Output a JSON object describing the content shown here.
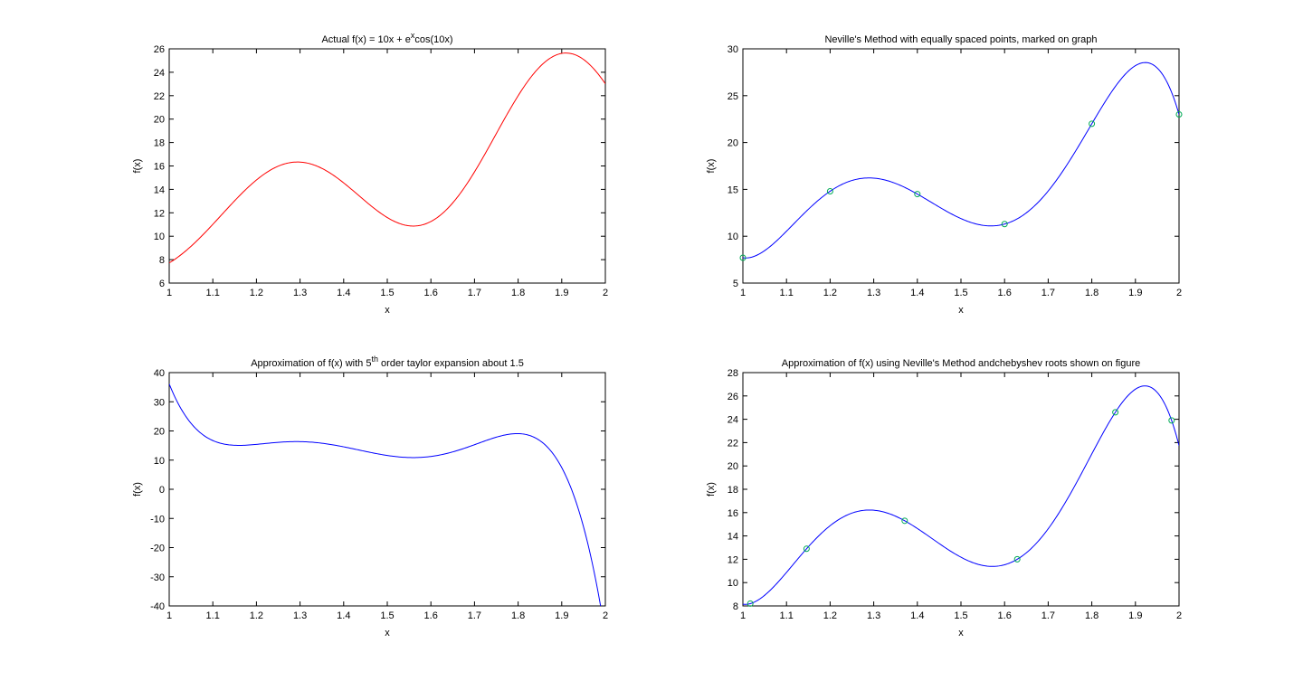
{
  "chart_data": [
    {
      "type": "line",
      "title": "Actual f(x) = 10x + e",
      "title_sup": "x",
      "title_tail": "cos(10x)",
      "xlabel": "x",
      "ylabel": "f(x)",
      "xlim": [
        1,
        2
      ],
      "ylim": [
        6,
        26
      ],
      "xticks": [
        1,
        1.1,
        1.2,
        1.3,
        1.4,
        1.5,
        1.6,
        1.7,
        1.8,
        1.9,
        2
      ],
      "yticks": [
        6,
        8,
        10,
        12,
        14,
        16,
        18,
        20,
        22,
        24,
        26
      ],
      "line_color": "#ff0000",
      "function": "actual",
      "markers": []
    },
    {
      "type": "line",
      "title": "Neville's Method with equally spaced points, marked on graph",
      "title_sup": "",
      "title_tail": "",
      "xlabel": "x",
      "ylabel": "f(x)",
      "xlim": [
        1,
        2
      ],
      "ylim": [
        5,
        30
      ],
      "xticks": [
        1,
        1.1,
        1.2,
        1.3,
        1.4,
        1.5,
        1.6,
        1.7,
        1.8,
        1.9,
        2
      ],
      "yticks": [
        5,
        10,
        15,
        20,
        25,
        30
      ],
      "line_color": "#0000ff",
      "function": "neville_equal",
      "marker_color": "#00aa55",
      "markers": [
        {
          "x": 1.0,
          "y": 7.7
        },
        {
          "x": 1.2,
          "y": 14.8
        },
        {
          "x": 1.4,
          "y": 14.5
        },
        {
          "x": 1.6,
          "y": 11.3
        },
        {
          "x": 1.8,
          "y": 22.0
        },
        {
          "x": 2.0,
          "y": 23.0
        }
      ]
    },
    {
      "type": "line",
      "title": "Approximation of f(x) with 5",
      "title_sup": "th",
      "title_tail": " order taylor expansion about 1.5",
      "xlabel": "x",
      "ylabel": "f(x)",
      "xlim": [
        1,
        2
      ],
      "ylim": [
        -40,
        40
      ],
      "xticks": [
        1,
        1.1,
        1.2,
        1.3,
        1.4,
        1.5,
        1.6,
        1.7,
        1.8,
        1.9,
        2
      ],
      "yticks": [
        -40,
        -30,
        -20,
        -10,
        0,
        10,
        20,
        30,
        40
      ],
      "line_color": "#0000ff",
      "function": "taylor",
      "markers": []
    },
    {
      "type": "line",
      "title": "Approximation of f(x) using Neville's Method andchebyshev roots shown on figure",
      "title_sup": "",
      "title_tail": "",
      "xlabel": "x",
      "ylabel": "f(x)",
      "xlim": [
        1,
        2
      ],
      "ylim": [
        8,
        28
      ],
      "xticks": [
        1,
        1.1,
        1.2,
        1.3,
        1.4,
        1.5,
        1.6,
        1.7,
        1.8,
        1.9,
        2
      ],
      "yticks": [
        8,
        10,
        12,
        14,
        16,
        18,
        20,
        22,
        24,
        26,
        28
      ],
      "line_color": "#0000ff",
      "function": "neville_cheb",
      "marker_color": "#00aa55",
      "markers": [
        {
          "x": 1.017,
          "y": 8.2
        },
        {
          "x": 1.146,
          "y": 12.9
        },
        {
          "x": 1.371,
          "y": 15.3
        },
        {
          "x": 1.629,
          "y": 12.0
        },
        {
          "x": 1.854,
          "y": 24.6
        },
        {
          "x": 1.983,
          "y": 23.9
        }
      ]
    }
  ]
}
